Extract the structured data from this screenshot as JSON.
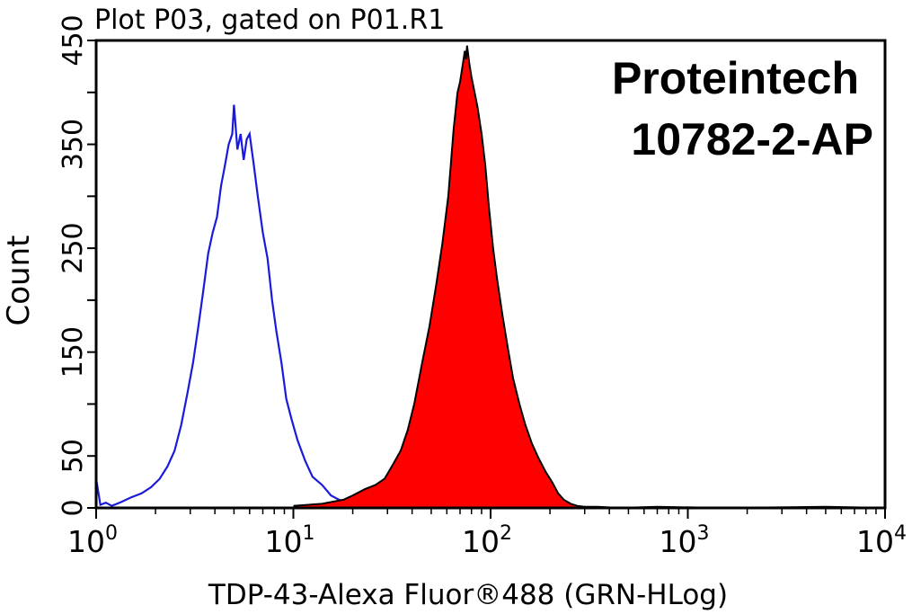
{
  "chart_data": {
    "type": "area",
    "title": "Plot P03, gated on P01.R1",
    "xlabel": "TDP-43-Alexa Fluor®488 (GRN-HLog)",
    "ylabel": "Count",
    "xscale": "log",
    "xlim": [
      1,
      10000
    ],
    "ylim": [
      0,
      450
    ],
    "xticks": [
      {
        "value": 1,
        "base": "10",
        "exp": "0"
      },
      {
        "value": 10,
        "base": "10",
        "exp": "1"
      },
      {
        "value": 100,
        "base": "10",
        "exp": "2"
      },
      {
        "value": 1000,
        "base": "10",
        "exp": "3"
      },
      {
        "value": 10000,
        "base": "10",
        "exp": "4"
      }
    ],
    "yticks": [
      0,
      50,
      150,
      250,
      350,
      450
    ],
    "yticks_extra": [],
    "annotation": {
      "line1": "Proteintech",
      "line2": "10782-2-AP"
    },
    "series": [
      {
        "style": "outline",
        "color": "#1a1adb",
        "x": [
          1.0,
          1.05,
          1.12,
          1.2,
          1.35,
          1.5,
          1.7,
          1.9,
          2.1,
          2.3,
          2.5,
          2.7,
          2.9,
          3.1,
          3.3,
          3.5,
          3.7,
          3.9,
          4.1,
          4.3,
          4.5,
          4.7,
          4.9,
          5.0,
          5.2,
          5.4,
          5.6,
          5.8,
          6.0,
          6.3,
          6.6,
          7.0,
          7.4,
          7.8,
          8.2,
          8.7,
          9.2,
          9.8,
          10.5,
          11.5,
          12.5,
          14.0,
          15.5,
          17.0,
          18.5
        ],
        "y": [
          28,
          3,
          5,
          2,
          6,
          10,
          14,
          20,
          28,
          40,
          55,
          80,
          110,
          140,
          175,
          210,
          245,
          265,
          280,
          310,
          330,
          350,
          360,
          388,
          345,
          360,
          335,
          355,
          360,
          330,
          300,
          265,
          240,
          200,
          170,
          140,
          105,
          85,
          65,
          45,
          30,
          22,
          12,
          8,
          5
        ]
      },
      {
        "style": "filled",
        "color": "#ff0000",
        "x": [
          10,
          14,
          18,
          20,
          23,
          26,
          29,
          32,
          35,
          38,
          41,
          45,
          49,
          53,
          57,
          61,
          65,
          68,
          70,
          72,
          74,
          75,
          76,
          78,
          80,
          83,
          86,
          90,
          94,
          98,
          103,
          108,
          115,
          122,
          130,
          140,
          150,
          162,
          175,
          190,
          205,
          220,
          235,
          255,
          275,
          300,
          350,
          450,
          700,
          1500,
          5000,
          10000
        ],
        "y": [
          2,
          4,
          8,
          12,
          18,
          22,
          28,
          42,
          55,
          75,
          100,
          140,
          175,
          215,
          255,
          300,
          365,
          400,
          410,
          425,
          440,
          432,
          445,
          428,
          415,
          400,
          385,
          360,
          330,
          290,
          250,
          220,
          185,
          155,
          125,
          100,
          80,
          62,
          48,
          35,
          25,
          14,
          8,
          4,
          2,
          1,
          1,
          0,
          1,
          0,
          1,
          0
        ]
      }
    ],
    "grid": false
  }
}
